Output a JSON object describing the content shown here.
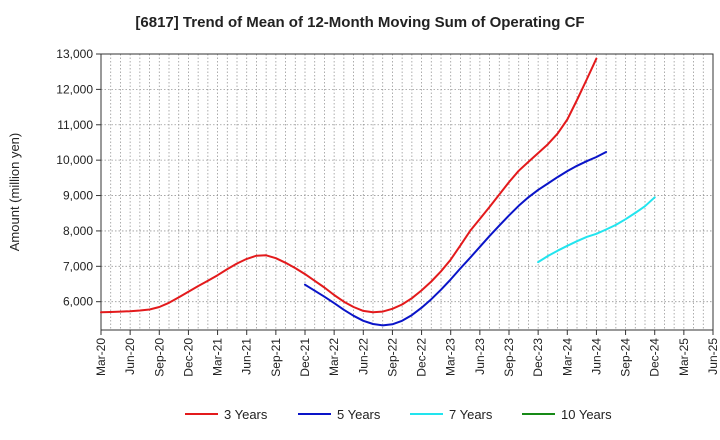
{
  "chart_data": {
    "type": "line",
    "title": "[6817]  Trend of Mean of 12-Month Moving Sum of Operating CF",
    "xlabel": "",
    "ylabel": "Amount (million yen)",
    "ylim": [
      5200,
      13000
    ],
    "yticks": [
      6000,
      7000,
      8000,
      9000,
      10000,
      11000,
      12000,
      13000
    ],
    "ytick_labels": [
      "6,000",
      "7,000",
      "8,000",
      "9,000",
      "10,000",
      "11,000",
      "12,000",
      "13,000"
    ],
    "x_categories": [
      "Mar-20",
      "Jun-20",
      "Sep-20",
      "Dec-20",
      "Mar-21",
      "Jun-21",
      "Sep-21",
      "Dec-21",
      "Mar-22",
      "Jun-22",
      "Sep-22",
      "Dec-22",
      "Mar-23",
      "Jun-23",
      "Sep-23",
      "Dec-23",
      "Mar-24",
      "Jun-24",
      "Sep-24",
      "Dec-24",
      "Mar-25",
      "Jun-25"
    ],
    "grid": true,
    "legend_position": "bottom",
    "series": [
      {
        "name": "3 Years",
        "color": "#e31a1c",
        "start_index": 0,
        "values": [
          5700,
          5710,
          5720,
          5730,
          5750,
          5780,
          5850,
          5970,
          6120,
          6280,
          6440,
          6590,
          6750,
          6920,
          7080,
          7210,
          7300,
          7310,
          7230,
          7100,
          6950,
          6780,
          6590,
          6400,
          6190,
          6000,
          5850,
          5740,
          5700,
          5720,
          5800,
          5920,
          6100,
          6320,
          6570,
          6860,
          7190,
          7590,
          8000,
          8340,
          8680,
          9030,
          9380,
          9700,
          9950,
          10200,
          10450,
          10750,
          11150,
          11700,
          12280,
          12870
        ]
      },
      {
        "name": "5 Years",
        "color": "#0a14c8",
        "start_index": 21,
        "values": [
          6480,
          6310,
          6140,
          5960,
          5770,
          5600,
          5460,
          5370,
          5330,
          5360,
          5460,
          5620,
          5830,
          6070,
          6340,
          6630,
          6940,
          7240,
          7550,
          7860,
          8150,
          8440,
          8710,
          8950,
          9160,
          9340,
          9520,
          9690,
          9840,
          9970,
          10090,
          10230
        ]
      },
      {
        "name": "7 Years",
        "color": "#22e4ee",
        "start_index": 45,
        "values": [
          7120,
          7290,
          7440,
          7580,
          7710,
          7830,
          7920,
          8040,
          8170,
          8330,
          8510,
          8700,
          8950
        ]
      },
      {
        "name": "10 Years",
        "color": "#178a17",
        "start_index": 0,
        "values": []
      }
    ]
  }
}
